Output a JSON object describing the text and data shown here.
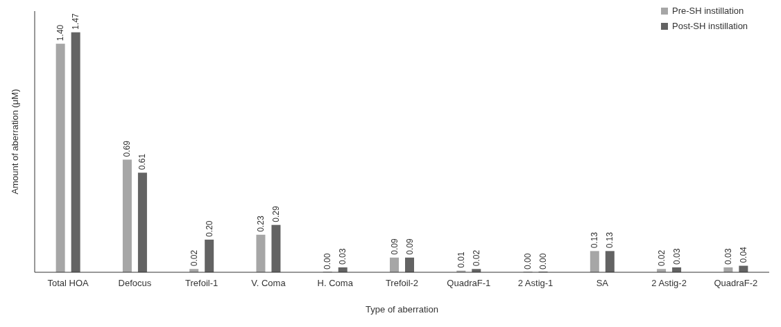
{
  "chart_data": {
    "type": "bar",
    "xlabel": "Type of aberration",
    "ylabel": "Amount of aberration (μM)",
    "categories": [
      "Total HOA",
      "Defocus",
      "Trefoil-1",
      "V. Coma",
      "H. Coma",
      "Trefoil-2",
      "QuadraF-1",
      "2 Astig-1",
      "SA",
      "2 Astig-2",
      "QuadraF-2"
    ],
    "series": [
      {
        "name": "Pre-SH instillation",
        "color": "#a6a6a6",
        "values": [
          1.4,
          0.69,
          0.02,
          0.23,
          0.0,
          0.09,
          0.01,
          0.0,
          0.13,
          0.02,
          0.03
        ],
        "value_labels": [
          "1.40",
          "0.69",
          "0.02",
          "0.23",
          "0.00",
          "0.09",
          "0.01",
          "0.00",
          "0.13",
          "0.02",
          "0.03"
        ]
      },
      {
        "name": "Post-SH instillation",
        "color": "#636363",
        "values": [
          1.47,
          0.61,
          0.2,
          0.29,
          0.03,
          0.09,
          0.02,
          0.0,
          0.13,
          0.03,
          0.04
        ],
        "value_labels": [
          "1.47",
          "0.61",
          "0.20",
          "0.29",
          "0.03",
          "0.09",
          "0.02",
          "0.00",
          "0.13",
          "0.03",
          "0.04"
        ]
      }
    ],
    "ylim": [
      0,
      1.6
    ],
    "legend": "top right"
  }
}
